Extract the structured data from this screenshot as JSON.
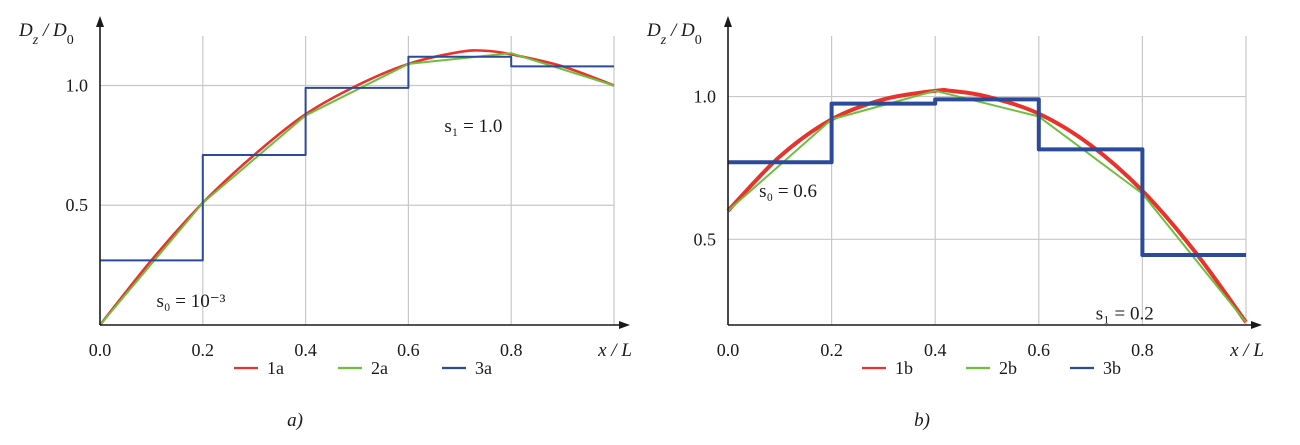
{
  "chart_data": [
    {
      "type": "line",
      "xlabel": "x / L",
      "ylabel": "D_z / D_0",
      "xlim": [
        0,
        1
      ],
      "ylim": [
        0,
        1.24
      ],
      "grid": true,
      "legend_position": "bottom",
      "xticks": [
        "0.0",
        "0.2",
        "0.4",
        "0.6",
        "0.8",
        "x / L"
      ],
      "yticks": [
        {
          "value": 0.5,
          "label": "0.5"
        },
        {
          "value": 1.0,
          "label": "1.0"
        }
      ],
      "caption": "a)",
      "annotations": [
        {
          "text": "s₁ = 1.0",
          "x": 0.67,
          "y": 0.83
        },
        {
          "text": "s₀ = 10⁻³",
          "x": 0.11,
          "y": 0.1
        }
      ],
      "series": [
        {
          "name": "1a",
          "color": "#e8322b",
          "width": 2.6,
          "x": [
            0,
            0.1,
            0.2,
            0.3,
            0.4,
            0.5,
            0.6,
            0.7,
            0.75,
            0.8,
            0.9,
            1.0
          ],
          "y": [
            0,
            0.27,
            0.51,
            0.71,
            0.88,
            1.0,
            1.09,
            1.14,
            1.145,
            1.13,
            1.08,
            1.0
          ]
        },
        {
          "name": "2a",
          "color": "#6fbf3f",
          "width": 2.0,
          "x": [
            0,
            0.2,
            0.4,
            0.6,
            0.8,
            1.0
          ],
          "y": [
            0,
            0.51,
            0.875,
            1.09,
            1.135,
            1.0
          ]
        },
        {
          "name": "3a",
          "color": "#2c4a9a",
          "width": 2.0,
          "step": true,
          "x": [
            0,
            0.2,
            0.4,
            0.6,
            0.8,
            1.0
          ],
          "y": [
            0.27,
            0.71,
            0.99,
            1.12,
            1.08,
            1.08
          ]
        }
      ]
    },
    {
      "type": "line",
      "xlabel": "x / L",
      "ylabel": "D_z / D_0",
      "xlim": [
        0,
        1
      ],
      "ylim": [
        0.2,
        1.24
      ],
      "grid": true,
      "legend_position": "bottom",
      "xticks": [
        "0.0",
        "0.2",
        "0.4",
        "0.6",
        "0.8",
        "x / L"
      ],
      "yticks": [
        {
          "value": 0.5,
          "label": "0.5"
        },
        {
          "value": 1.0,
          "label": "1.0"
        }
      ],
      "caption": "b)",
      "annotations": [
        {
          "text": "s₀ = 0.6",
          "x": 0.06,
          "y": 0.67
        },
        {
          "text": "s₁ = 0.2",
          "x": 0.71,
          "y": 0.24
        }
      ],
      "series": [
        {
          "name": "1b",
          "color": "#e8322b",
          "width": 4.0,
          "x": [
            0,
            0.1,
            0.2,
            0.3,
            0.4,
            0.43,
            0.5,
            0.6,
            0.7,
            0.8,
            0.9,
            1.0
          ],
          "y": [
            0.6,
            0.79,
            0.92,
            0.99,
            1.02,
            1.02,
            1.0,
            0.94,
            0.83,
            0.67,
            0.46,
            0.21
          ]
        },
        {
          "name": "2b",
          "color": "#6fbf3f",
          "width": 2.0,
          "x": [
            0,
            0.2,
            0.4,
            0.6,
            0.8,
            1.0
          ],
          "y": [
            0.6,
            0.92,
            1.02,
            0.93,
            0.66,
            0.21
          ]
        },
        {
          "name": "3b",
          "color": "#2c4a9a",
          "width": 4.0,
          "step": true,
          "x": [
            0,
            0.2,
            0.4,
            0.6,
            0.8,
            1.0
          ],
          "y": [
            0.77,
            0.975,
            0.99,
            0.815,
            0.445,
            0.445
          ]
        }
      ]
    }
  ]
}
